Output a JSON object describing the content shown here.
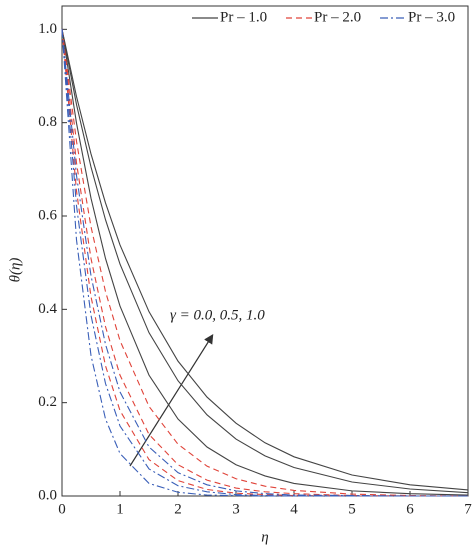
{
  "chart_data": {
    "type": "line",
    "x_label": "η",
    "y_label": "θ(η)",
    "annotation": "γ = 0.0, 0.5, 1.0",
    "x": [
      0,
      0.25,
      0.5,
      0.75,
      1,
      1.5,
      2,
      2.5,
      3,
      3.5,
      4,
      5,
      6,
      7
    ],
    "xlim": [
      0,
      7
    ],
    "xticks": [
      0,
      1,
      2,
      3,
      4,
      5,
      6,
      7
    ],
    "ylim": [
      0,
      1.05
    ],
    "yticks": [
      {
        "value": 0,
        "label": "0.0"
      },
      0.2,
      0.4,
      0.6,
      0.8,
      {
        "value": 1,
        "label": "1.0"
      }
    ],
    "series": [
      {
        "name": "Pr – 1.0",
        "color": "#444444",
        "dash": "none",
        "lines": [
          [
            1,
            0.856,
            0.733,
            0.628,
            0.538,
            0.395,
            0.289,
            0.212,
            0.156,
            0.114,
            0.084,
            0.045,
            0.024,
            0.013
          ],
          [
            1,
            0.839,
            0.705,
            0.592,
            0.497,
            0.35,
            0.247,
            0.174,
            0.122,
            0.086,
            0.061,
            0.03,
            0.015,
            0.007
          ],
          [
            1,
            0.799,
            0.638,
            0.509,
            0.407,
            0.259,
            0.165,
            0.105,
            0.067,
            0.043,
            0.027,
            0.011,
            0.005,
            0.002
          ]
        ]
      },
      {
        "name": "Pr – 2.0",
        "color": "#e0443a",
        "dash": "6 4",
        "lines": [
          [
            1,
            0.76,
            0.577,
            0.438,
            0.333,
            0.192,
            0.111,
            0.064,
            0.037,
            0.021,
            0.012,
            0.004,
            0.001,
            0
          ],
          [
            1,
            0.714,
            0.509,
            0.363,
            0.259,
            0.132,
            0.067,
            0.034,
            0.017,
            0.009,
            0.005,
            0.001,
            0,
            0
          ],
          [
            1,
            0.654,
            0.427,
            0.279,
            0.183,
            0.078,
            0.033,
            0.014,
            0.006,
            0.003,
            0.001,
            0,
            0,
            0
          ]
        ]
      },
      {
        "name": "Pr – 3.0",
        "color": "#3a5fb8",
        "dash": "8 3 2 3",
        "lines": [
          [
            1,
            0.687,
            0.472,
            0.325,
            0.223,
            0.105,
            0.05,
            0.024,
            0.011,
            0.005,
            0.002,
            0.001,
            0,
            0
          ],
          [
            1,
            0.622,
            0.387,
            0.241,
            0.15,
            0.058,
            0.022,
            0.009,
            0.003,
            0.001,
            0,
            0,
            0,
            0
          ],
          [
            1,
            0.549,
            0.301,
            0.165,
            0.091,
            0.027,
            0.008,
            0.002,
            0.001,
            0,
            0,
            0,
            0,
            0
          ]
        ]
      }
    ]
  }
}
